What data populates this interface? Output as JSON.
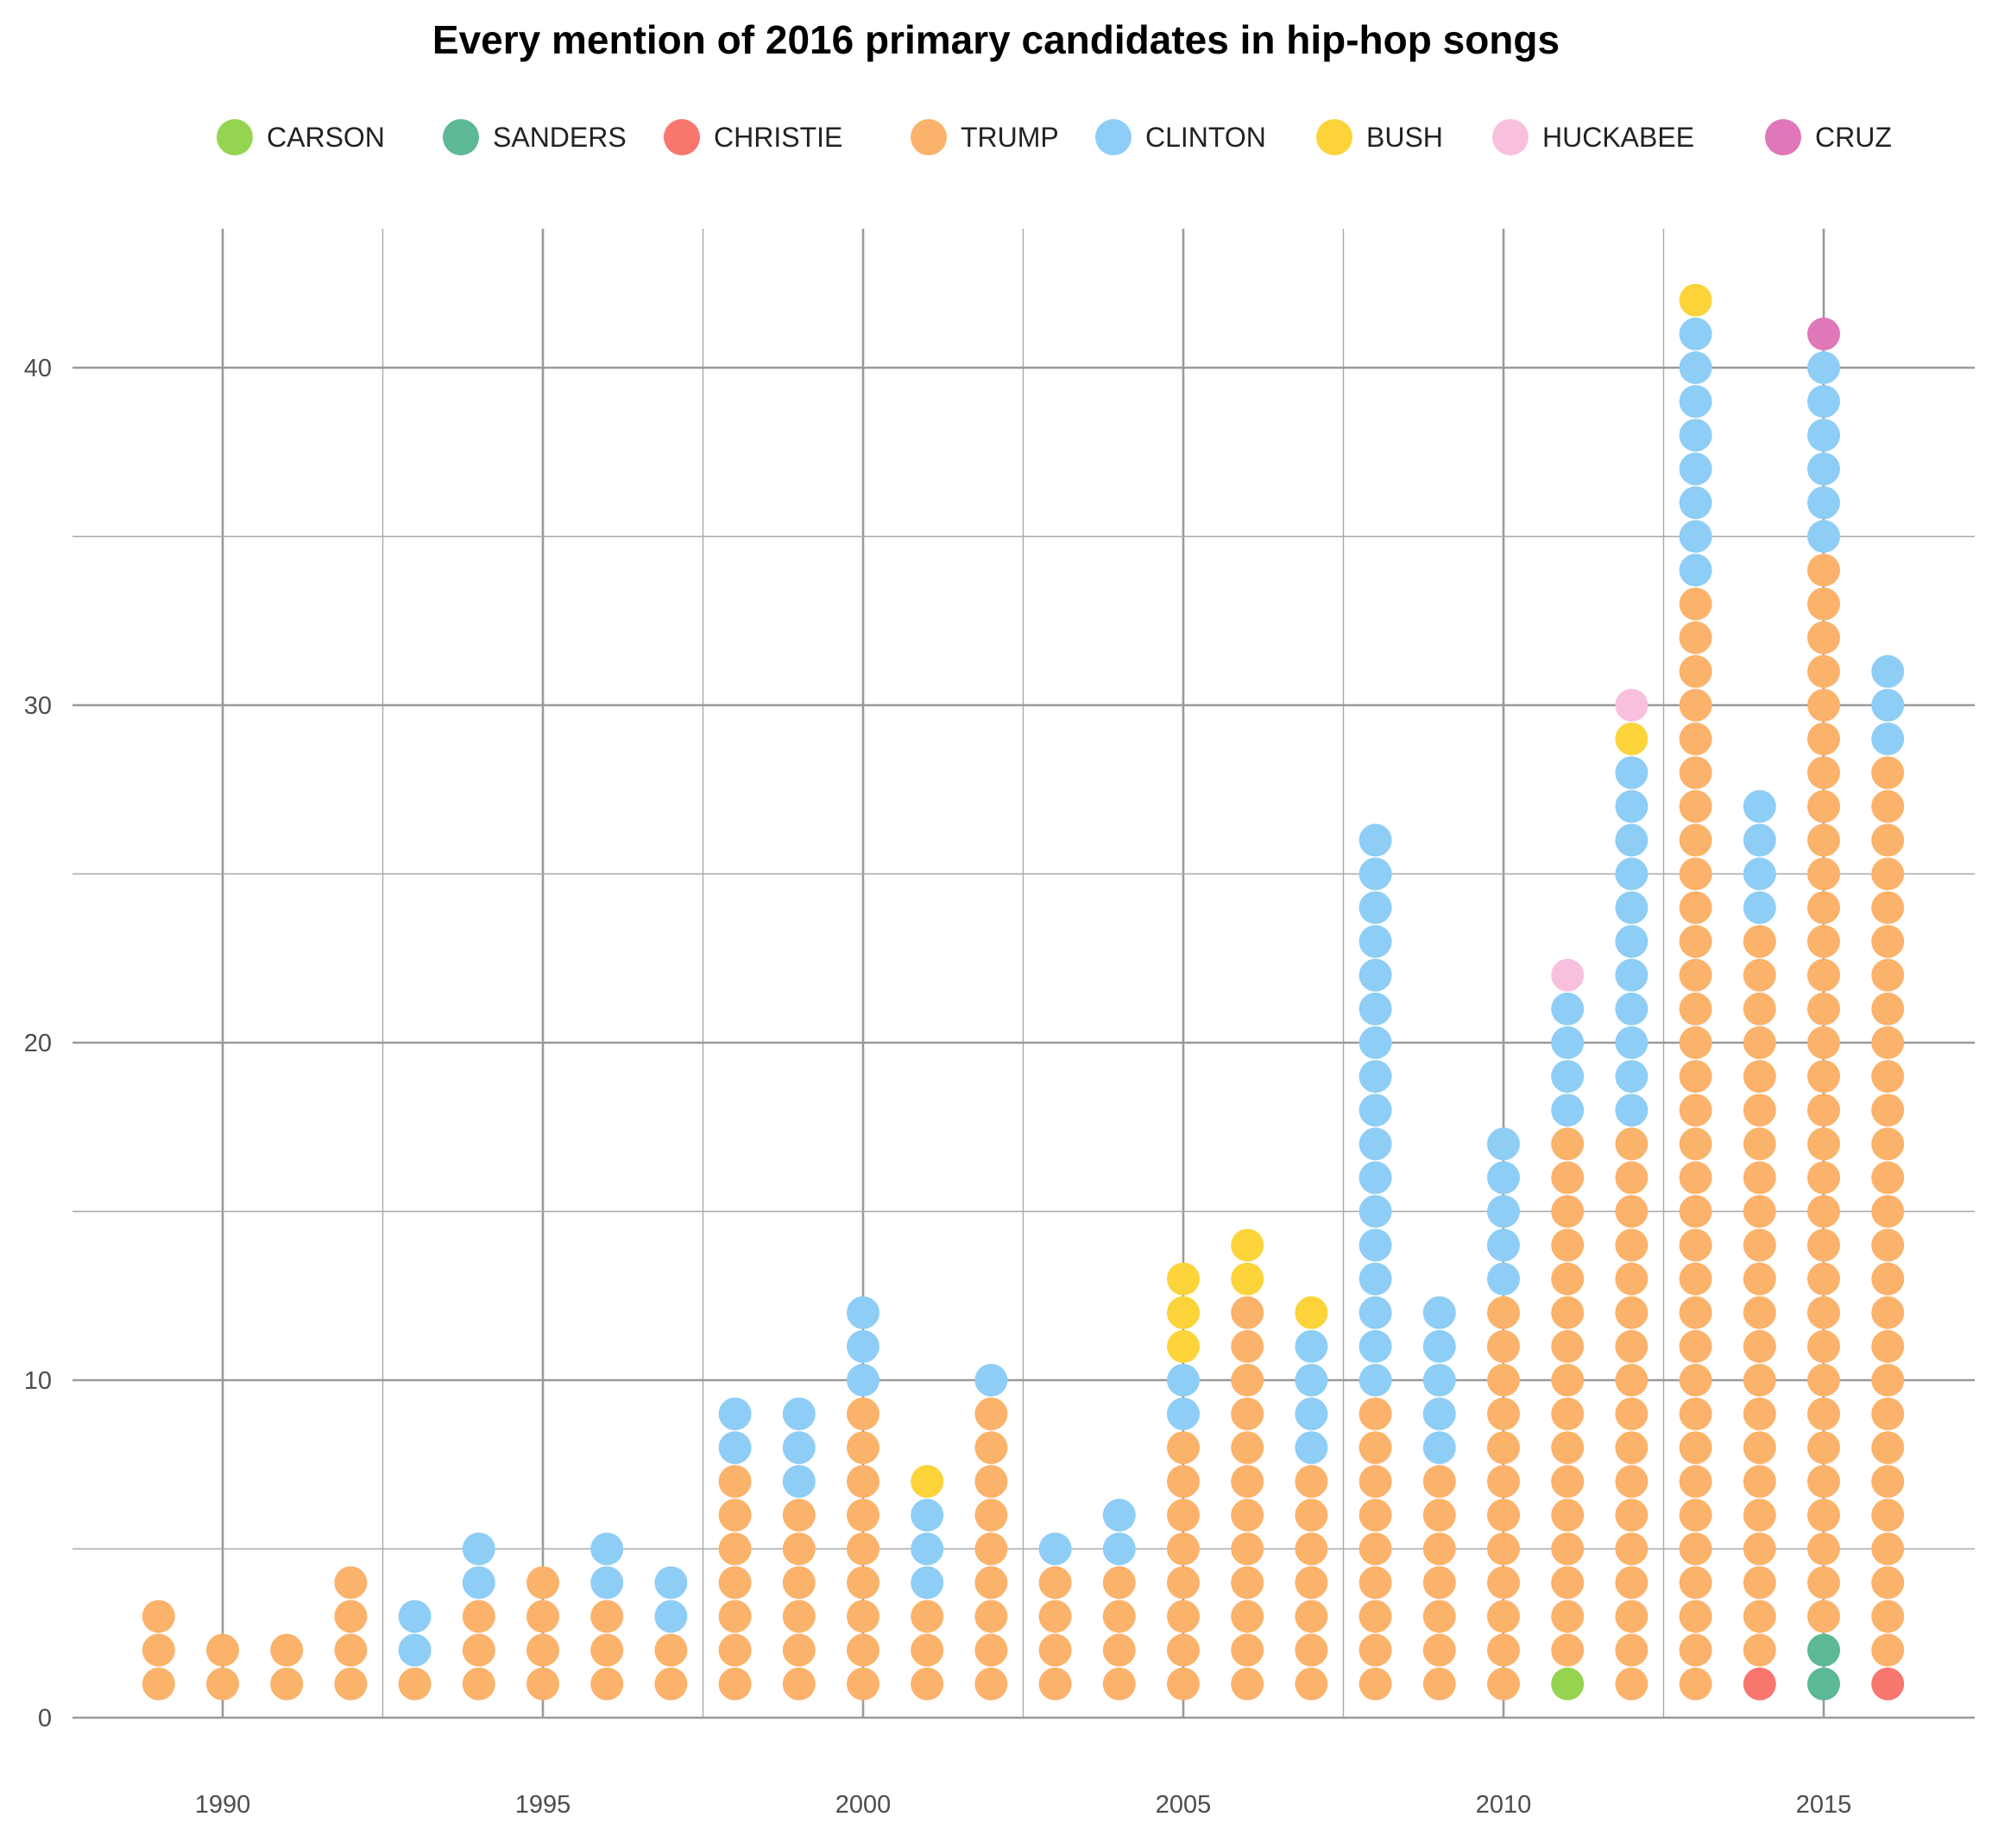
{
  "chart_data": {
    "type": "scatter",
    "title": "Every mention of 2016 primary candidates in hip-hop songs",
    "xlabel": "",
    "ylabel": "",
    "xlim": [
      1987.5,
      2017.5
    ],
    "ylim": [
      -0.2,
      45
    ],
    "x_ticks": [
      1990,
      1995,
      2000,
      2005,
      2010,
      2015
    ],
    "y_ticks": [
      0,
      10,
      20,
      30,
      40
    ],
    "grid": true,
    "legend_position": "top",
    "legend": [
      {
        "name": "CARSON",
        "color": "#95d450"
      },
      {
        "name": "SANDERS",
        "color": "#5cb895"
      },
      {
        "name": "CHRISTIE",
        "color": "#f8766d"
      },
      {
        "name": "TRUMP",
        "color": "#fbb26b"
      },
      {
        "name": "CLINTON",
        "color": "#8ecdf6"
      },
      {
        "name": "BUSH",
        "color": "#fcd43a"
      },
      {
        "name": "HUCKABEE",
        "color": "#f9c0dd"
      },
      {
        "name": "CRUZ",
        "color": "#df77b8"
      }
    ],
    "stack_order": [
      "CARSON",
      "SANDERS",
      "CHRISTIE",
      "TRUMP",
      "CLINTON",
      "BUSH",
      "HUCKABEE",
      "CRUZ"
    ],
    "mentions_by_year": [
      {
        "year": 1989,
        "counts": {
          "TRUMP": 3
        }
      },
      {
        "year": 1990,
        "counts": {
          "TRUMP": 2
        }
      },
      {
        "year": 1991,
        "counts": {
          "TRUMP": 2
        }
      },
      {
        "year": 1992,
        "counts": {
          "TRUMP": 4
        }
      },
      {
        "year": 1993,
        "counts": {
          "TRUMP": 1,
          "CLINTON": 2
        }
      },
      {
        "year": 1994,
        "counts": {
          "TRUMP": 3,
          "CLINTON": 2
        }
      },
      {
        "year": 1995,
        "counts": {
          "TRUMP": 4
        }
      },
      {
        "year": 1996,
        "counts": {
          "TRUMP": 3,
          "CLINTON": 2
        }
      },
      {
        "year": 1997,
        "counts": {
          "TRUMP": 2,
          "CLINTON": 2
        }
      },
      {
        "year": 1998,
        "counts": {
          "TRUMP": 7,
          "CLINTON": 2
        }
      },
      {
        "year": 1999,
        "counts": {
          "TRUMP": 6,
          "CLINTON": 3
        }
      },
      {
        "year": 2000,
        "counts": {
          "TRUMP": 9,
          "CLINTON": 3
        }
      },
      {
        "year": 2001,
        "counts": {
          "TRUMP": 3,
          "CLINTON": 3,
          "BUSH": 1
        }
      },
      {
        "year": 2002,
        "counts": {
          "TRUMP": 9,
          "CLINTON": 1
        }
      },
      {
        "year": 2003,
        "counts": {
          "TRUMP": 4,
          "CLINTON": 1
        }
      },
      {
        "year": 2004,
        "counts": {
          "TRUMP": 4,
          "CLINTON": 2
        }
      },
      {
        "year": 2005,
        "counts": {
          "TRUMP": 8,
          "CLINTON": 2,
          "BUSH": 3
        }
      },
      {
        "year": 2006,
        "counts": {
          "TRUMP": 12,
          "BUSH": 2
        }
      },
      {
        "year": 2007,
        "counts": {
          "TRUMP": 7,
          "CLINTON": 4,
          "BUSH": 1
        }
      },
      {
        "year": 2008,
        "counts": {
          "TRUMP": 9,
          "CLINTON": 17
        }
      },
      {
        "year": 2009,
        "counts": {
          "TRUMP": 7,
          "CLINTON": 5
        }
      },
      {
        "year": 2010,
        "counts": {
          "TRUMP": 12,
          "CLINTON": 5
        }
      },
      {
        "year": 2011,
        "counts": {
          "CARSON": 1,
          "TRUMP": 16,
          "CLINTON": 4,
          "HUCKABEE": 1
        }
      },
      {
        "year": 2012,
        "counts": {
          "TRUMP": 17,
          "CLINTON": 11,
          "BUSH": 1,
          "HUCKABEE": 1
        }
      },
      {
        "year": 2013,
        "counts": {
          "TRUMP": 33,
          "CLINTON": 8,
          "BUSH": 1
        }
      },
      {
        "year": 2014,
        "counts": {
          "CHRISTIE": 1,
          "TRUMP": 22,
          "CLINTON": 4
        }
      },
      {
        "year": 2015,
        "counts": {
          "SANDERS": 2,
          "TRUMP": 32,
          "CLINTON": 6,
          "CRUZ": 1
        }
      },
      {
        "year": 2016,
        "counts": {
          "CHRISTIE": 1,
          "TRUMP": 27,
          "CLINTON": 3
        }
      }
    ]
  }
}
